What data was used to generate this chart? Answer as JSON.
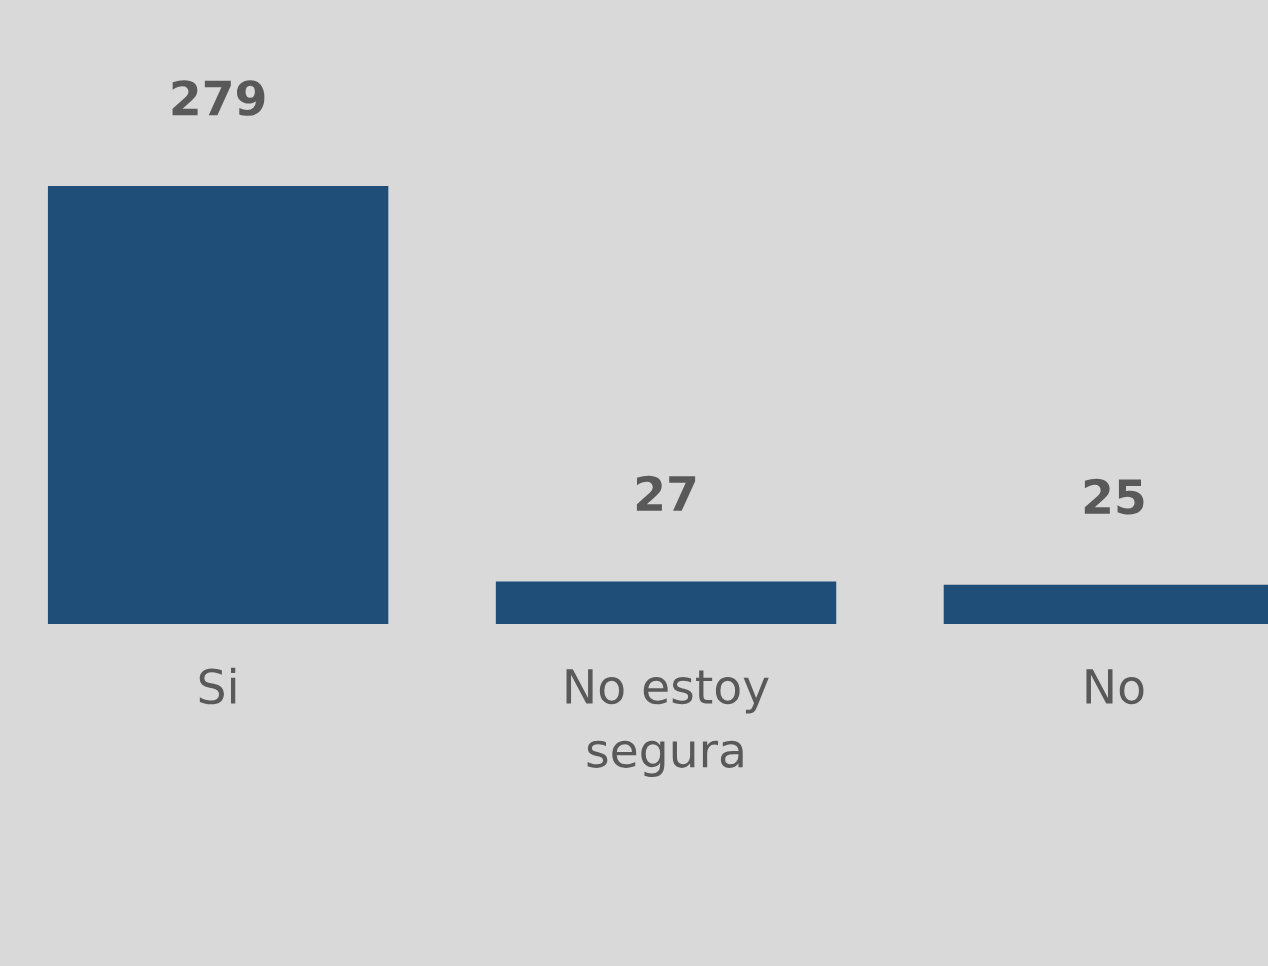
{
  "chart_data": {
    "type": "bar",
    "categories": [
      "Si",
      "No estoy segura",
      "No"
    ],
    "values": [
      279,
      27,
      25
    ],
    "color": "#1f4e79",
    "data_labels": true
  }
}
